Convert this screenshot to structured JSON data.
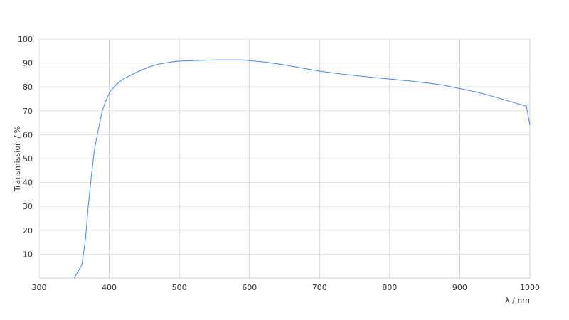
{
  "chart_data": {
    "type": "line",
    "title": "",
    "xlabel": "λ / nm",
    "ylabel": "Transmission / %",
    "xlim": [
      300,
      1000
    ],
    "ylim": [
      0,
      100
    ],
    "xticks": [
      300,
      400,
      500,
      600,
      700,
      800,
      900,
      1000
    ],
    "yticks": [
      10,
      20,
      30,
      40,
      50,
      60,
      70,
      80,
      90,
      100
    ],
    "grid": true,
    "line_color": "#4285f4",
    "series": [
      {
        "x": [
          350,
          355,
          361,
          366,
          370,
          375,
          379,
          385,
          390,
          395,
          401,
          410,
          420,
          430,
          440,
          450,
          460,
          470,
          480,
          490,
          500,
          520,
          550,
          590,
          600,
          625,
          650,
          675,
          700,
          725,
          750,
          775,
          800,
          825,
          850,
          875,
          900,
          925,
          950,
          975,
          995,
          1000
        ],
        "y": [
          0,
          2.5,
          5.6,
          16,
          30,
          44,
          54,
          63,
          70,
          74,
          78,
          81,
          83.3,
          84.8,
          86.3,
          87.5,
          88.7,
          89.5,
          90,
          90.5,
          90.8,
          91,
          91.3,
          91.3,
          91,
          90.3,
          89.2,
          87.9,
          86.6,
          85.6,
          84.8,
          84,
          83.3,
          82.6,
          81.8,
          80.8,
          79.3,
          77.8,
          75.8,
          73.6,
          72,
          64
        ]
      }
    ]
  }
}
